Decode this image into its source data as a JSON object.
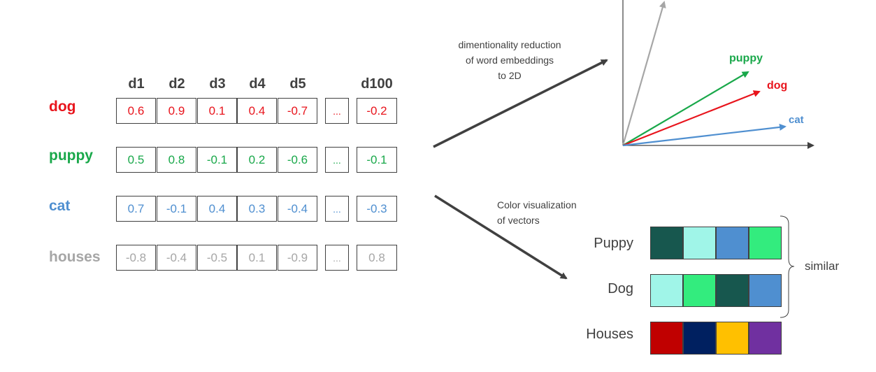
{
  "columns": [
    "d1",
    "d2",
    "d3",
    "d4",
    "d5",
    "d100"
  ],
  "ellipsis": "...",
  "rows": [
    {
      "word": "dog",
      "color": "#e8141c",
      "values": [
        "0.6",
        "0.9",
        "0.1",
        "0.4",
        "-0.7",
        "-0.2"
      ]
    },
    {
      "word": "puppy",
      "color": "#19a84a",
      "values": [
        "0.5",
        "0.8",
        "-0.1",
        "0.2",
        "-0.6",
        "-0.1"
      ]
    },
    {
      "word": "cat",
      "color": "#4f8fd0",
      "values": [
        "0.7",
        "-0.1",
        "0.4",
        "0.3",
        "-0.4",
        "-0.3"
      ]
    },
    {
      "word": "houses",
      "color": "#a6a6a6",
      "values": [
        "-0.8",
        "-0.4",
        "-0.5",
        "0.1",
        "-0.9",
        "0.8"
      ]
    }
  ],
  "note_reduction": [
    "dimentionality reduction",
    "of word embeddings",
    "to 2D"
  ],
  "note_color": [
    "Color visualization",
    "of vectors"
  ],
  "plot_labels": {
    "puppy": "puppy",
    "dog": "dog",
    "cat": "cat"
  },
  "swatches": [
    {
      "label": "Puppy",
      "colors": [
        "#17574e",
        "#a0f5e8",
        "#4f8fd0",
        "#33ec7e"
      ]
    },
    {
      "label": "Dog",
      "colors": [
        "#a0f5e8",
        "#33ec7e",
        "#17574e",
        "#4f8fd0"
      ]
    },
    {
      "label": "Houses",
      "colors": [
        "#c00000",
        "#002060",
        "#ffc000",
        "#7030a0"
      ]
    }
  ],
  "similar_label": "similar"
}
